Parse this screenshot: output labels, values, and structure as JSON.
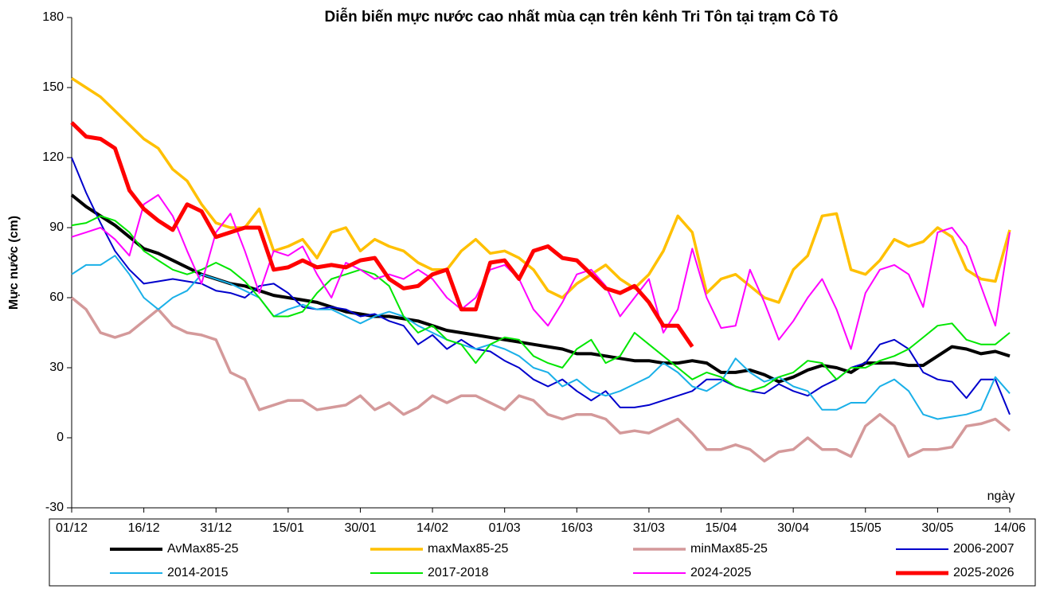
{
  "chart_data": {
    "type": "line",
    "title": "Diễn biến mực nước cao nhất mùa cạn trên kênh Tri Tôn tại trạm Cô Tô",
    "y_label": "Mực nước (cm)",
    "x_label": "ngày",
    "categories": [
      "01/12",
      null,
      null,
      null,
      null,
      "16/12",
      null,
      null,
      null,
      null,
      "31/12",
      null,
      null,
      null,
      null,
      "15/01",
      null,
      null,
      null,
      null,
      "30/01",
      null,
      null,
      null,
      null,
      "14/02",
      null,
      null,
      null,
      null,
      "01/03",
      null,
      null,
      null,
      null,
      "16/03",
      null,
      null,
      null,
      null,
      "31/03",
      null,
      null,
      null,
      null,
      "15/04",
      null,
      null,
      null,
      null,
      "30/04",
      null,
      null,
      null,
      null,
      "15/05",
      null,
      null,
      null,
      null,
      "30/05",
      null,
      null,
      null,
      null,
      "14/06"
    ],
    "ylim": [
      -30,
      180
    ],
    "yticks": [
      -30,
      0,
      30,
      60,
      90,
      120,
      150,
      180
    ],
    "grid": false,
    "legend": "bottom",
    "series": [
      {
        "name": "AvMax85-25",
        "color": "#000000",
        "width": 4,
        "values": [
          104,
          99,
          95,
          91,
          86,
          81,
          79,
          76,
          73,
          70,
          68,
          66,
          65,
          63,
          61,
          60,
          59,
          58,
          56,
          54,
          53,
          52,
          52,
          51,
          50,
          48,
          46,
          45,
          44,
          43,
          42,
          41,
          40,
          39,
          38,
          36,
          36,
          35,
          34,
          33,
          33,
          32,
          32,
          33,
          32,
          28,
          28,
          29,
          27,
          24,
          26,
          29,
          31,
          30,
          28,
          32,
          32,
          32,
          31,
          31,
          35,
          39,
          38,
          36,
          37,
          35
        ]
      },
      {
        "name": "maxMax85-25",
        "color": "#ffc000",
        "width": 3.5,
        "values": [
          154,
          150,
          146,
          140,
          134,
          128,
          124,
          115,
          110,
          100,
          92,
          90,
          90,
          98,
          80,
          82,
          85,
          77,
          88,
          90,
          80,
          85,
          82,
          80,
          75,
          72,
          72,
          80,
          85,
          79,
          80,
          77,
          72,
          63,
          60,
          66,
          70,
          74,
          68,
          64,
          70,
          80,
          95,
          88,
          62,
          68,
          70,
          65,
          60,
          58,
          72,
          78,
          95,
          96,
          72,
          70,
          76,
          85,
          82,
          84,
          90,
          86,
          72,
          68,
          67,
          89
        ]
      },
      {
        "name": "minMax85-25",
        "color": "#d4999a",
        "width": 3.5,
        "values": [
          60,
          55,
          45,
          43,
          45,
          50,
          55,
          48,
          45,
          44,
          42,
          28,
          25,
          12,
          14,
          16,
          16,
          12,
          13,
          14,
          18,
          12,
          15,
          10,
          13,
          18,
          15,
          18,
          18,
          15,
          12,
          18,
          16,
          10,
          8,
          10,
          10,
          8,
          2,
          3,
          2,
          5,
          8,
          2,
          -5,
          -5,
          -3,
          -5,
          -10,
          -6,
          -5,
          0,
          -5,
          -5,
          -8,
          5,
          10,
          5,
          -8,
          -5,
          -5,
          -4,
          5,
          6,
          8,
          3
        ]
      },
      {
        "name": "2006-2007",
        "color": "#0000cc",
        "width": 2,
        "values": [
          120,
          105,
          92,
          80,
          72,
          66,
          67,
          68,
          67,
          66,
          63,
          62,
          60,
          65,
          66,
          62,
          56,
          55,
          56,
          55,
          52,
          53,
          50,
          48,
          40,
          44,
          38,
          42,
          38,
          37,
          33,
          30,
          25,
          22,
          25,
          20,
          16,
          20,
          13,
          13,
          14,
          16,
          18,
          20,
          25,
          25,
          22,
          20,
          19,
          23,
          20,
          18,
          22,
          25,
          30,
          32,
          40,
          42,
          38,
          28,
          25,
          24,
          17,
          25,
          25,
          10
        ]
      },
      {
        "name": "2014-2015",
        "color": "#1ab0e8",
        "width": 2,
        "values": [
          70,
          74,
          74,
          78,
          70,
          60,
          55,
          60,
          63,
          70,
          68,
          66,
          63,
          60,
          52,
          55,
          57,
          55,
          55,
          52,
          49,
          52,
          54,
          52,
          48,
          45,
          42,
          40,
          38,
          40,
          38,
          35,
          30,
          28,
          22,
          25,
          20,
          18,
          20,
          23,
          26,
          32,
          28,
          22,
          20,
          24,
          34,
          28,
          24,
          26,
          22,
          20,
          12,
          12,
          15,
          15,
          22,
          25,
          20,
          10,
          8,
          9,
          10,
          12,
          26,
          19
        ]
      },
      {
        "name": "2017-2018",
        "color": "#00e600",
        "width": 2,
        "values": [
          91,
          92,
          95,
          93,
          88,
          80,
          76,
          72,
          70,
          72,
          75,
          72,
          67,
          60,
          52,
          52,
          54,
          62,
          68,
          70,
          72,
          70,
          65,
          52,
          45,
          48,
          42,
          40,
          32,
          40,
          43,
          42,
          35,
          32,
          30,
          38,
          42,
          32,
          35,
          45,
          40,
          35,
          30,
          25,
          28,
          26,
          22,
          20,
          22,
          26,
          28,
          33,
          32,
          25,
          30,
          30,
          33,
          35,
          38,
          43,
          48,
          49,
          42,
          40,
          40,
          45
        ]
      },
      {
        "name": "2024-2025",
        "color": "#ff00ff",
        "width": 2,
        "values": [
          86,
          88,
          90,
          85,
          78,
          100,
          104,
          95,
          80,
          66,
          88,
          96,
          80,
          62,
          80,
          78,
          82,
          70,
          60,
          75,
          72,
          68,
          70,
          68,
          72,
          68,
          60,
          55,
          60,
          72,
          74,
          68,
          55,
          48,
          58,
          70,
          72,
          65,
          52,
          60,
          68,
          45,
          55,
          81,
          60,
          47,
          48,
          72,
          58,
          42,
          50,
          60,
          68,
          55,
          38,
          62,
          72,
          74,
          70,
          56,
          88,
          90,
          82,
          65,
          48,
          88
        ]
      },
      {
        "name": "2025-2026",
        "color": "#ff0000",
        "width": 5,
        "values": [
          135,
          129,
          128,
          124,
          106,
          98,
          93,
          89,
          100,
          97,
          86,
          88,
          90,
          90,
          72,
          73,
          76,
          73,
          74,
          73,
          76,
          77,
          68,
          64,
          65,
          70,
          72,
          55,
          55,
          75,
          76,
          68,
          80,
          82,
          77,
          76,
          70,
          64,
          62,
          65,
          58,
          48,
          48,
          39,
          null,
          null,
          null,
          null,
          null,
          null,
          null,
          null,
          null,
          null,
          null,
          null,
          null,
          null,
          null,
          null,
          null,
          null,
          null,
          null,
          null,
          null
        ]
      }
    ]
  }
}
